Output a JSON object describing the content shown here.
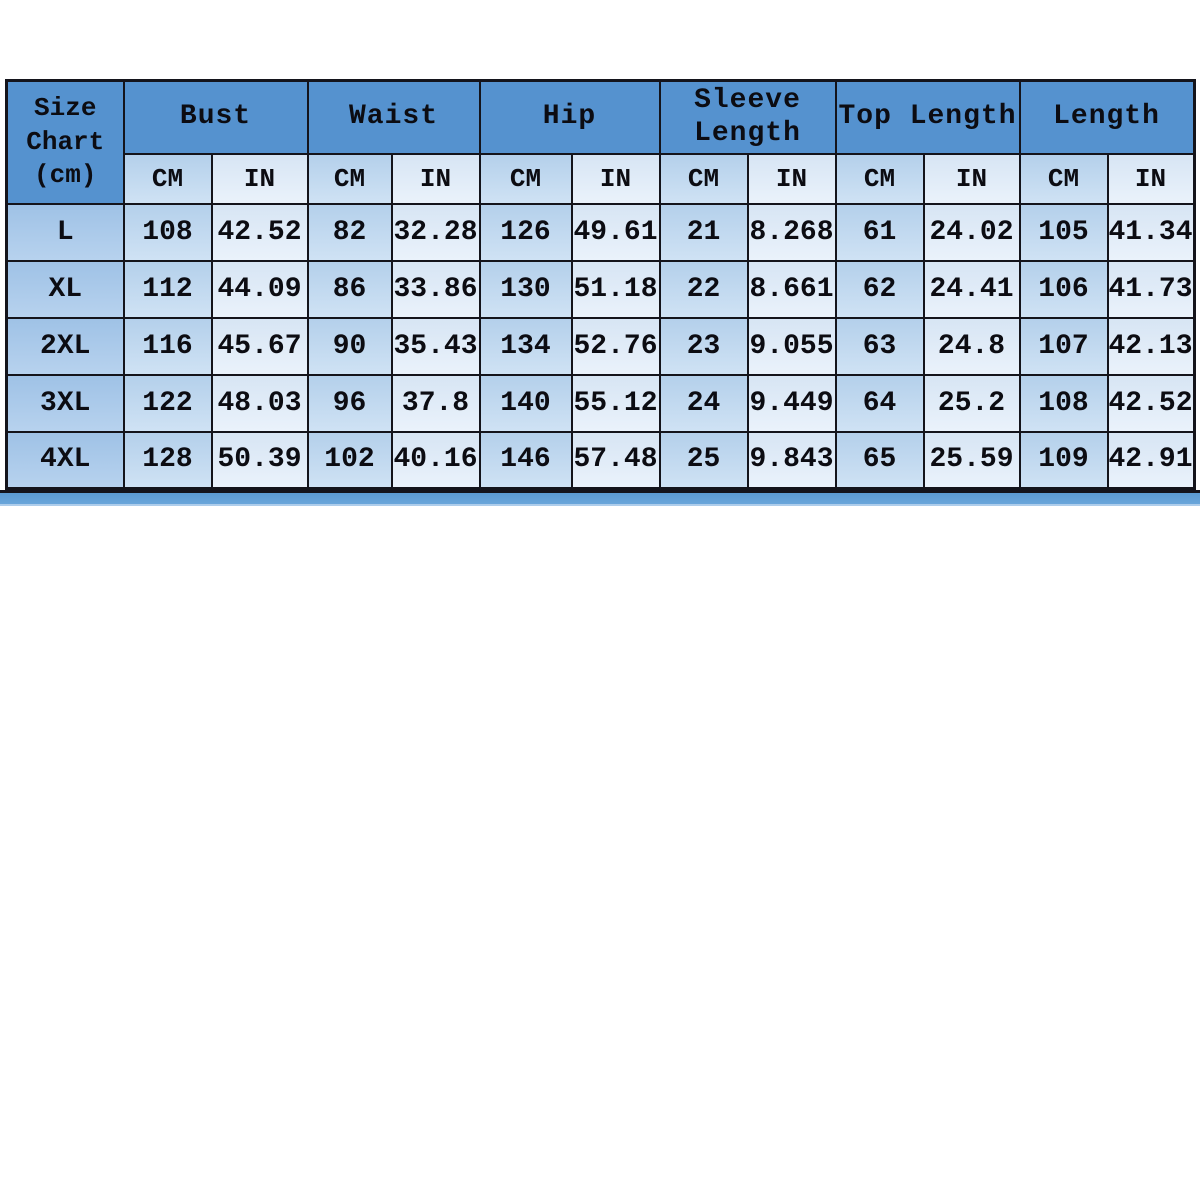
{
  "table": {
    "corner_label": "Size Chart (cm)",
    "groups": [
      {
        "label": "Bust"
      },
      {
        "label": "Waist"
      },
      {
        "label": "Hip"
      },
      {
        "label": "Sleeve Length"
      },
      {
        "label": "Top Length"
      },
      {
        "label": "Length"
      }
    ],
    "units": {
      "cm": "CM",
      "in": "IN"
    },
    "rows": [
      {
        "size": "L",
        "cells": [
          "108",
          "42.52",
          "82",
          "32.28",
          "126",
          "49.61",
          "21",
          "8.268",
          "61",
          "24.02",
          "105",
          "41.34"
        ]
      },
      {
        "size": "XL",
        "cells": [
          "112",
          "44.09",
          "86",
          "33.86",
          "130",
          "51.18",
          "22",
          "8.661",
          "62",
          "24.41",
          "106",
          "41.73"
        ]
      },
      {
        "size": "2XL",
        "cells": [
          "116",
          "45.67",
          "90",
          "35.43",
          "134",
          "52.76",
          "23",
          "9.055",
          "63",
          "24.8",
          "107",
          "42.13"
        ]
      },
      {
        "size": "3XL",
        "cells": [
          "122",
          "48.03",
          "96",
          "37.8",
          "140",
          "55.12",
          "24",
          "9.449",
          "64",
          "25.2",
          "108",
          "42.52"
        ]
      },
      {
        "size": "4XL",
        "cells": [
          "128",
          "50.39",
          "102",
          "40.16",
          "146",
          "57.48",
          "25",
          "9.843",
          "65",
          "25.59",
          "109",
          "42.91"
        ]
      }
    ]
  },
  "colors": {
    "header_blue": "#5592cf",
    "cm_cell": "#bdd7ee",
    "in_cell": "#dce9f5",
    "size_cell": "#a9c9e9",
    "border": "#14141b",
    "accent_bar": "#5b9ad2"
  },
  "chart_data": {
    "type": "table",
    "title": "Size Chart (cm)",
    "column_groups": [
      "Bust",
      "Waist",
      "Hip",
      "Sleeve Length",
      "Top Length",
      "Length"
    ],
    "unit_columns": [
      "CM",
      "IN",
      "CM",
      "IN",
      "CM",
      "IN",
      "CM",
      "IN",
      "CM",
      "IN",
      "CM",
      "IN"
    ],
    "row_labels": [
      "L",
      "XL",
      "2XL",
      "3XL",
      "4XL"
    ],
    "rows": [
      [
        108,
        42.52,
        82,
        32.28,
        126,
        49.61,
        21,
        8.268,
        61,
        24.02,
        105,
        41.34
      ],
      [
        112,
        44.09,
        86,
        33.86,
        130,
        51.18,
        22,
        8.661,
        62,
        24.41,
        106,
        41.73
      ],
      [
        116,
        45.67,
        90,
        35.43,
        134,
        52.76,
        23,
        9.055,
        63,
        24.8,
        107,
        42.13
      ],
      [
        122,
        48.03,
        96,
        37.8,
        140,
        55.12,
        24,
        9.449,
        64,
        25.2,
        108,
        42.52
      ],
      [
        128,
        50.39,
        102,
        40.16,
        146,
        57.48,
        25,
        9.843,
        65,
        25.59,
        109,
        42.91
      ]
    ]
  }
}
